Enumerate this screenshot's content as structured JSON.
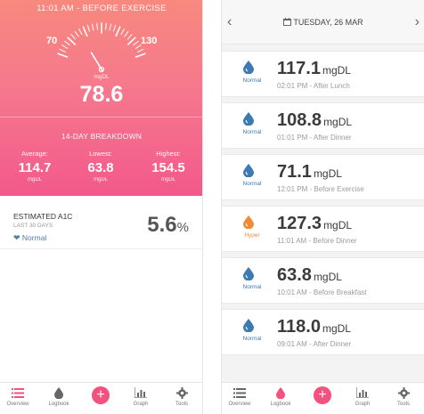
{
  "colors": {
    "accent": "#f3527f",
    "normal": "#3d7ab3",
    "hyper": "#f08a38",
    "gauge": "#ffffff"
  },
  "overview": {
    "reading_time": "11:01 AM - BEFORE EXERCISE",
    "gauge": {
      "min_label": "70",
      "max_label": "130",
      "unit": "mgDL",
      "value": "78.6",
      "value_num": 78.6,
      "min": 70,
      "max": 130
    },
    "breakdown": {
      "title": "14-DAY BREAKDOWN",
      "stats": [
        {
          "label": "Average:",
          "value": "114.7",
          "unit": "mgDL"
        },
        {
          "label": "Lowest:",
          "value": "63.8",
          "unit": "mgDL"
        },
        {
          "label": "Highest:",
          "value": "154.5",
          "unit": "mgDL"
        }
      ]
    },
    "a1c": {
      "title": "ESTIMATED A1C",
      "subtitle": "LAST 30 DAYS",
      "status": "Normal",
      "value": "5.6",
      "unit": "%"
    }
  },
  "tabbar": {
    "items": [
      {
        "label": "Overview",
        "icon": "list-icon"
      },
      {
        "label": "Logbook",
        "icon": "drop-icon"
      },
      {
        "label": "",
        "icon": "plus-icon"
      },
      {
        "label": "Graph",
        "icon": "chart-icon"
      },
      {
        "label": "Tools",
        "icon": "gear-icon"
      }
    ]
  },
  "logbook": {
    "date": "TUESDAY, 26 MAR",
    "entries": [
      {
        "status": "Normal",
        "value": "117.1",
        "unit": "mgDL",
        "time": "02:01 PM - After Lunch"
      },
      {
        "status": "Normal",
        "value": "108.8",
        "unit": "mgDL",
        "time": "01:01 PM - After Dinner"
      },
      {
        "status": "Normal",
        "value": "71.1",
        "unit": "mgDL",
        "time": "12:01 PM - Before Exercise"
      },
      {
        "status": "Hyper",
        "value": "127.3",
        "unit": "mgDL",
        "time": "11:01 AM - Before Dinner"
      },
      {
        "status": "Normal",
        "value": "63.8",
        "unit": "mgDL",
        "time": "10:01 AM - Before Breakfast"
      },
      {
        "status": "Normal",
        "value": "118.0",
        "unit": "mgDL",
        "time": "09:01 AM - After Dinner"
      }
    ]
  }
}
